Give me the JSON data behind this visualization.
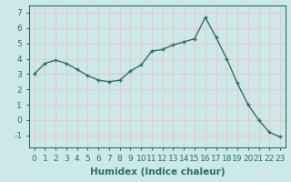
{
  "x": [
    0,
    1,
    2,
    3,
    4,
    5,
    6,
    7,
    8,
    9,
    10,
    11,
    12,
    13,
    14,
    15,
    16,
    17,
    18,
    19,
    20,
    21,
    22,
    23
  ],
  "y": [
    3.0,
    3.7,
    3.9,
    3.7,
    3.3,
    2.9,
    2.6,
    2.5,
    2.6,
    3.2,
    3.6,
    4.5,
    4.6,
    4.9,
    5.1,
    5.3,
    6.7,
    5.4,
    4.0,
    2.4,
    1.0,
    0.0,
    -0.8,
    -1.1
  ],
  "line_color": "#2d6e63",
  "marker": "+",
  "marker_size": 3,
  "bg_color": "#cde8e8",
  "grid_color": "#e8c8c8",
  "title": "",
  "xlabel": "Humidex (Indice chaleur)",
  "ylabel": "",
  "ylim": [
    -1.8,
    7.5
  ],
  "xlim": [
    -0.5,
    23.5
  ],
  "yticks": [
    -1,
    0,
    1,
    2,
    3,
    4,
    5,
    6,
    7
  ],
  "xticks": [
    0,
    1,
    2,
    3,
    4,
    5,
    6,
    7,
    8,
    9,
    10,
    11,
    12,
    13,
    14,
    15,
    16,
    17,
    18,
    19,
    20,
    21,
    22,
    23
  ],
  "xlabel_fontsize": 7.5,
  "tick_fontsize": 6.5,
  "line_width": 1.0,
  "spine_color": "#2d6e63"
}
